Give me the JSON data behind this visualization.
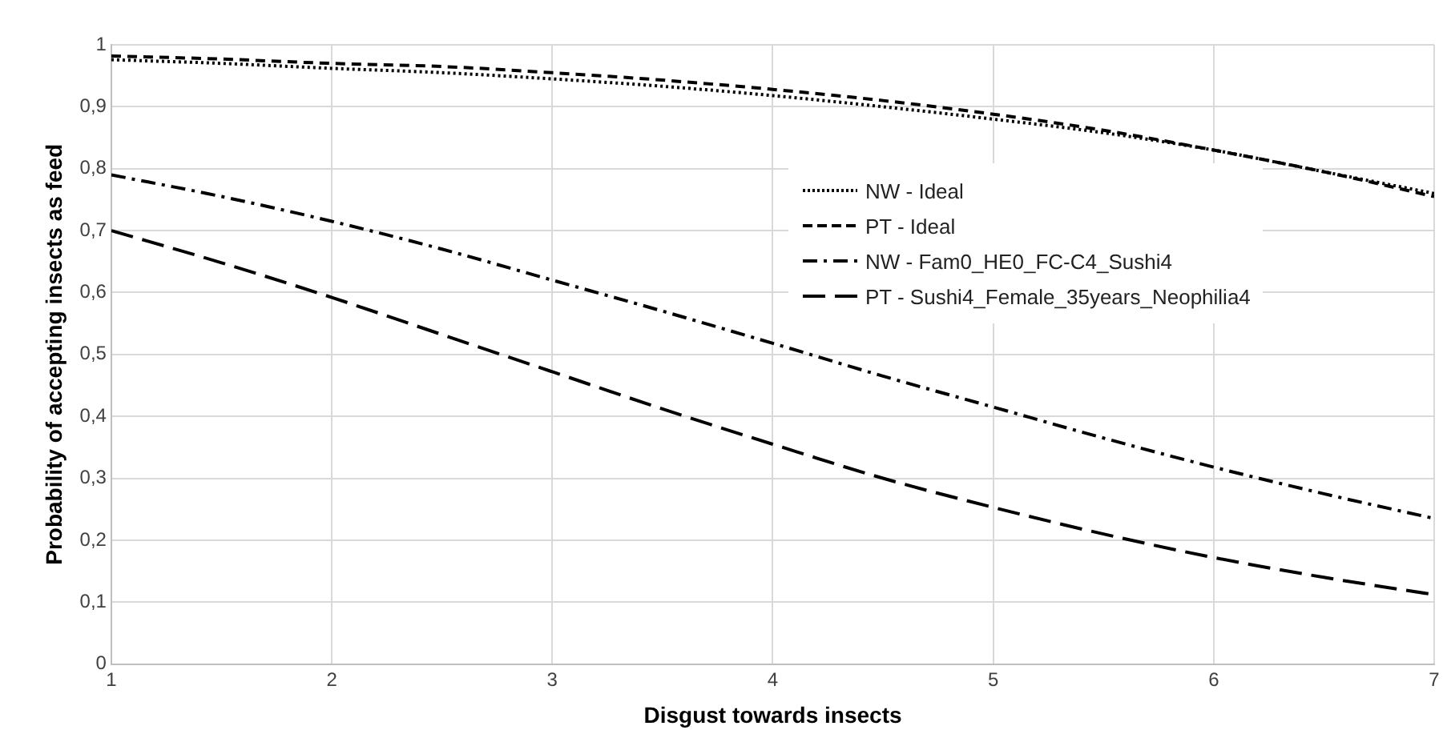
{
  "chart_data": {
    "type": "line",
    "xlabel": "Disgust towards insects",
    "ylabel": "Probability of accepting insects as feed",
    "x": [
      1,
      1.5,
      2,
      2.5,
      3,
      3.5,
      4,
      4.5,
      5,
      5.5,
      6,
      6.5,
      7
    ],
    "xlim": [
      1,
      7
    ],
    "xticks": [
      1,
      2,
      3,
      4,
      5,
      6,
      7
    ],
    "ylim": [
      0,
      1
    ],
    "yticks": [
      0,
      {
        "value": 0.1,
        "label": "0,1"
      },
      {
        "value": 0.2,
        "label": "0,2"
      },
      {
        "value": 0.3,
        "label": "0,3"
      },
      {
        "value": 0.4,
        "label": "0,4"
      },
      {
        "value": 0.5,
        "label": "0,5"
      },
      {
        "value": 0.6,
        "label": "0,6"
      },
      {
        "value": 0.7,
        "label": "0,7"
      },
      {
        "value": 0.8,
        "label": "0,8"
      },
      {
        "value": 0.9,
        "label": "0,9"
      },
      1
    ],
    "grid": true,
    "legend": "right",
    "marker": "none",
    "series": [
      {
        "name": "NW - Ideal",
        "color": "#000000",
        "line_style": "dotted",
        "values": [
          0.976,
          0.97,
          0.962,
          0.955,
          0.945,
          0.933,
          0.918,
          0.9,
          0.88,
          0.858,
          0.83,
          0.795,
          0.76
        ]
      },
      {
        "name": "PT - Ideal",
        "color": "#000000",
        "line_style": "dashed",
        "values": [
          0.982,
          0.977,
          0.97,
          0.965,
          0.955,
          0.943,
          0.928,
          0.91,
          0.888,
          0.862,
          0.83,
          0.795,
          0.755
        ]
      },
      {
        "name": "NW - Fam0_HE0_FC-C4_Sushi4",
        "color": "#000000",
        "line_style": "dashdot",
        "values": [
          0.79,
          0.755,
          0.715,
          0.67,
          0.62,
          0.57,
          0.518,
          0.465,
          0.415,
          0.365,
          0.318,
          0.275,
          0.235
        ]
      },
      {
        "name": "PT - Sushi4_Female_35years_Neophilia4",
        "color": "#000000",
        "line_style": "longdash",
        "values": [
          0.7,
          0.648,
          0.592,
          0.532,
          0.472,
          0.412,
          0.355,
          0.3,
          0.253,
          0.21,
          0.172,
          0.14,
          0.112
        ]
      }
    ]
  }
}
